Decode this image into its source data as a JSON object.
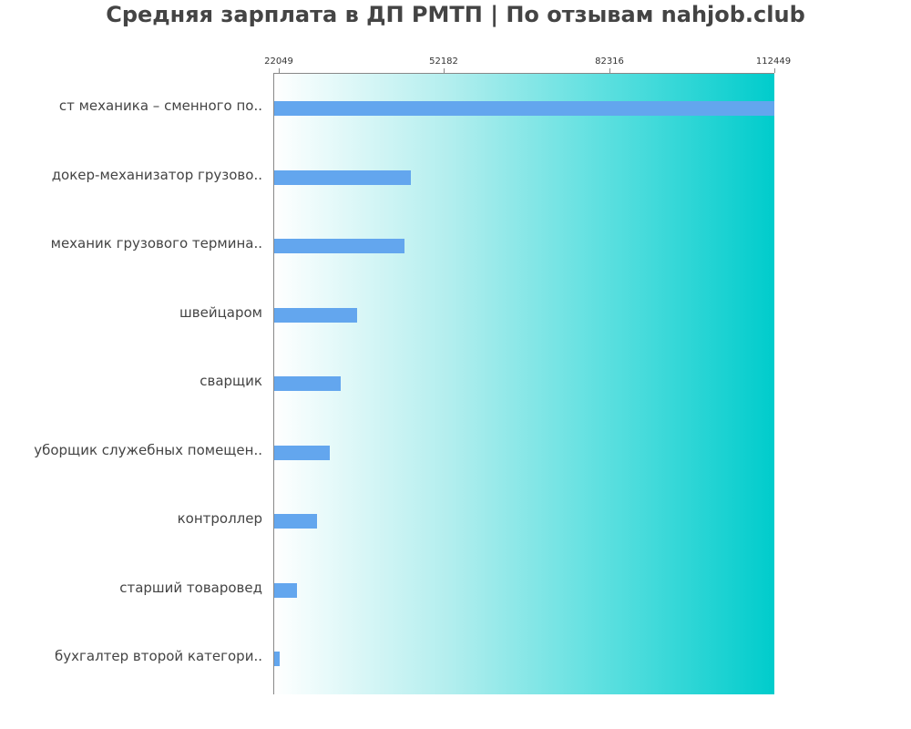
{
  "title": "Средняя зарплата в ДП РМТП | По отзывам nahjob.club",
  "colors": {
    "bar": "#63a6ee",
    "gradient_start": "#ffffff",
    "gradient_end": "#00cccc",
    "text": "#444444",
    "axis": "#888888"
  },
  "axis": {
    "ticks": [
      "22049",
      "52182",
      "82316",
      "112449"
    ]
  },
  "categories": [
    "ст механика – сменного по..",
    "докер-механизатор грузово..",
    "механик грузового термина..",
    "швейцаром",
    "сварщик",
    "уборщик служебных помещен..",
    "контроллер",
    "старший товаровед",
    "бухгалтер второй категори.."
  ],
  "chart_data": {
    "type": "bar",
    "orientation": "horizontal",
    "title": "Средняя зарплата в ДП РМТП | По отзывам nahjob.club",
    "xlabel": "",
    "ylabel": "",
    "categories": [
      "ст механика – сменного по..",
      "докер-механизатор грузово..",
      "механик грузового термина..",
      "швейцаром",
      "сварщик",
      "уборщик служебных помещен..",
      "контроллер",
      "старший товаровед",
      "бухгалтер второй категори.."
    ],
    "values": [
      112449,
      46100,
      45000,
      36300,
      33300,
      31400,
      29000,
      25400,
      22200
    ],
    "xlim": [
      21050,
      112449
    ],
    "x_ticks": [
      22049,
      52182,
      82316,
      112449
    ],
    "x_axis_position": "top",
    "grid": false,
    "legend": null,
    "background": "horizontal gradient white to turquoise"
  }
}
